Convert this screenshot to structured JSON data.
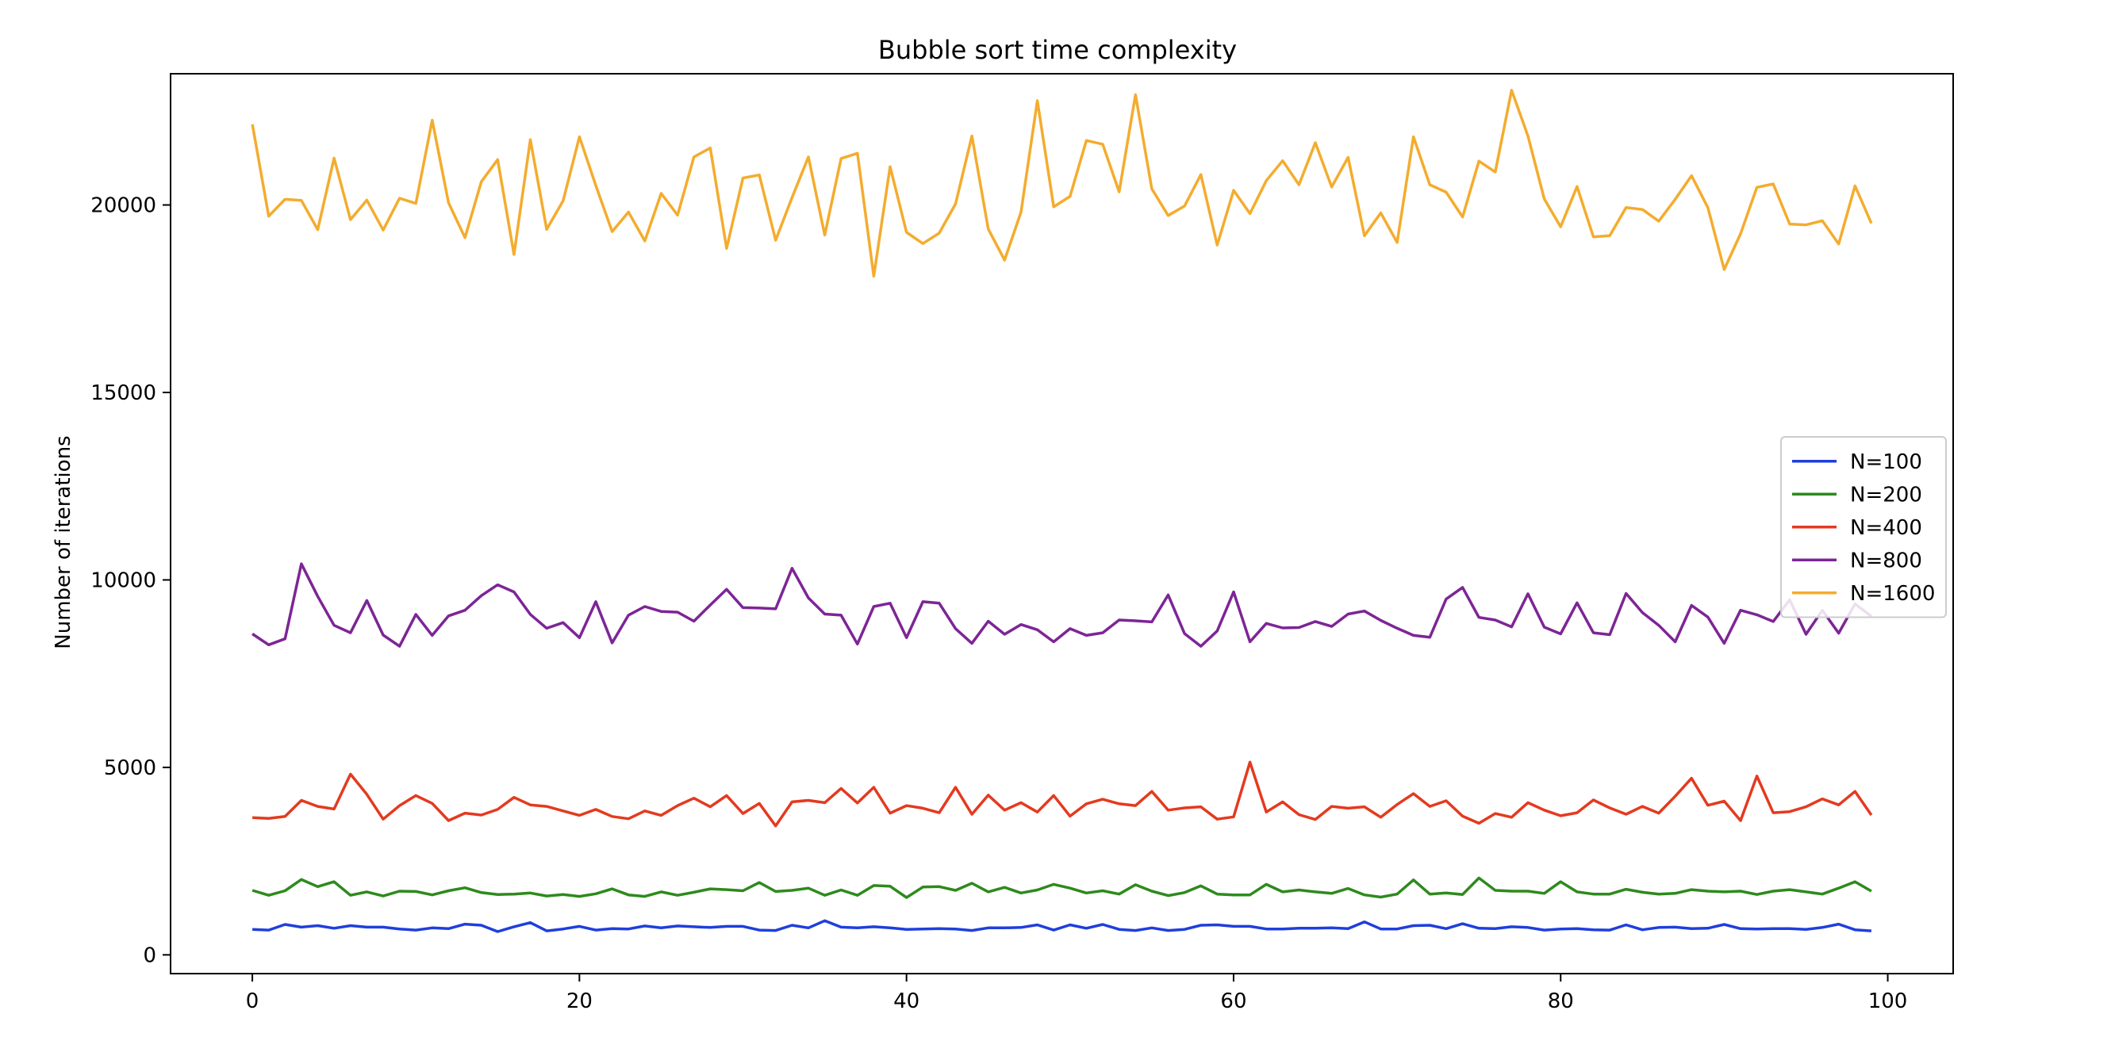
{
  "chart_data": {
    "type": "line",
    "title": "Bubble sort time complexity",
    "xlabel": "",
    "ylabel": "Number of iterations",
    "xlim": [
      -5,
      104
    ],
    "ylim": [
      -500,
      23500
    ],
    "xticks": [
      0,
      20,
      40,
      60,
      80,
      100
    ],
    "yticks": [
      0,
      5000,
      10000,
      15000,
      20000
    ],
    "grid": false,
    "legend_position": "center-right",
    "series": [
      {
        "name": "N=100",
        "color": "#1f3fdc",
        "values": [
          680,
          660,
          810,
          740,
          780,
          710,
          780,
          740,
          740,
          690,
          660,
          720,
          700,
          820,
          790,
          620,
          750,
          860,
          640,
          690,
          760,
          660,
          700,
          690,
          770,
          720,
          770,
          750,
          730,
          760,
          760,
          660,
          650,
          790,
          720,
          910,
          740,
          720,
          750,
          720,
          680,
          690,
          700,
          690,
          650,
          720,
          720,
          730,
          800,
          660,
          800,
          710,
          810,
          680,
          650,
          720,
          650,
          680,
          790,
          800,
          760,
          760,
          690,
          690,
          710,
          710,
          720,
          700,
          880,
          690,
          690,
          780,
          790,
          700,
          830,
          710,
          700,
          750,
          730,
          660,
          690,
          700,
          670,
          660,
          800,
          670,
          730,
          740,
          700,
          710,
          810,
          700,
          690,
          700,
          700,
          680,
          730,
          820,
          670,
          640
        ]
      },
      {
        "name": "N=200",
        "color": "#2e8a1d",
        "values": [
          1720,
          1590,
          1710,
          2010,
          1820,
          1950,
          1590,
          1680,
          1570,
          1700,
          1690,
          1600,
          1710,
          1790,
          1660,
          1610,
          1620,
          1650,
          1570,
          1610,
          1560,
          1630,
          1760,
          1600,
          1560,
          1680,
          1590,
          1670,
          1760,
          1740,
          1710,
          1930,
          1690,
          1720,
          1780,
          1590,
          1730,
          1590,
          1850,
          1830,
          1530,
          1810,
          1820,
          1720,
          1910,
          1680,
          1800,
          1650,
          1730,
          1880,
          1780,
          1650,
          1710,
          1620,
          1870,
          1700,
          1580,
          1660,
          1840,
          1620,
          1600,
          1600,
          1880,
          1680,
          1730,
          1680,
          1640,
          1770,
          1600,
          1540,
          1620,
          2000,
          1620,
          1650,
          1610,
          2050,
          1720,
          1700,
          1700,
          1640,
          1950,
          1680,
          1620,
          1620,
          1750,
          1670,
          1620,
          1640,
          1740,
          1700,
          1680,
          1700,
          1610,
          1700,
          1740,
          1680,
          1620,
          1780,
          1950,
          1700
        ]
      },
      {
        "name": "N=400",
        "color": "#e43a1f",
        "values": [
          3660,
          3640,
          3690,
          4120,
          3960,
          3890,
          4820,
          4280,
          3620,
          3980,
          4250,
          4040,
          3580,
          3780,
          3730,
          3880,
          4200,
          4000,
          3960,
          3840,
          3720,
          3880,
          3690,
          3630,
          3840,
          3720,
          3980,
          4180,
          3950,
          4250,
          3770,
          4040,
          3440,
          4080,
          4120,
          4060,
          4440,
          4050,
          4470,
          3780,
          3980,
          3910,
          3790,
          4470,
          3750,
          4260,
          3860,
          4060,
          3810,
          4250,
          3700,
          4030,
          4150,
          4030,
          3980,
          4360,
          3860,
          3920,
          3950,
          3620,
          3680,
          5140,
          3810,
          4080,
          3740,
          3610,
          3960,
          3910,
          3950,
          3670,
          4010,
          4300,
          3960,
          4110,
          3700,
          3510,
          3770,
          3670,
          4060,
          3860,
          3710,
          3790,
          4130,
          3920,
          3750,
          3960,
          3780,
          4230,
          4710,
          3990,
          4100,
          3580,
          4770,
          3790,
          3820,
          3950,
          4160,
          4000,
          4360,
          3730
        ]
      },
      {
        "name": "N=800",
        "color": "#7d2596",
        "values": [
          8560,
          8270,
          8430,
          10430,
          9560,
          8790,
          8590,
          9450,
          8530,
          8230,
          9080,
          8520,
          9040,
          9190,
          9580,
          9870,
          9680,
          9080,
          8710,
          8860,
          8460,
          9420,
          8320,
          9060,
          9290,
          9160,
          9140,
          8900,
          9330,
          9750,
          9260,
          9250,
          9230,
          10310,
          9520,
          9090,
          9060,
          8290,
          9290,
          9380,
          8460,
          9420,
          9380,
          8700,
          8310,
          8900,
          8550,
          8810,
          8670,
          8350,
          8700,
          8520,
          8590,
          8930,
          8910,
          8880,
          9600,
          8570,
          8230,
          8640,
          9680,
          8350,
          8840,
          8720,
          8730,
          8890,
          8760,
          9090,
          9170,
          8920,
          8710,
          8520,
          8470,
          9490,
          9800,
          9000,
          8930,
          8750,
          9630,
          8740,
          8560,
          9390,
          8590,
          8540,
          9640,
          9130,
          8790,
          8350,
          9320,
          9010,
          8310,
          9190,
          9070,
          8890,
          9470,
          8550,
          9190,
          8580,
          9360,
          9030
        ]
      },
      {
        "name": "N=1600",
        "color": "#f4ac2e",
        "values": [
          22150,
          19700,
          20150,
          20120,
          19340,
          21250,
          19610,
          20130,
          19330,
          20180,
          20040,
          22260,
          20060,
          19130,
          20620,
          21210,
          18680,
          21740,
          19350,
          20110,
          21820,
          20520,
          19290,
          19810,
          19040,
          20310,
          19730,
          21280,
          21520,
          18840,
          20720,
          20800,
          19060,
          20200,
          21280,
          19200,
          21240,
          21380,
          18100,
          21020,
          19270,
          18970,
          19250,
          20030,
          21840,
          19360,
          18530,
          19810,
          22780,
          19950,
          20230,
          21720,
          21620,
          20350,
          22940,
          20430,
          19720,
          19970,
          20810,
          18930,
          20390,
          19770,
          20650,
          21180,
          20540,
          21660,
          20480,
          21270,
          19180,
          19790,
          19000,
          21820,
          20540,
          20340,
          19680,
          21170,
          20880,
          23060,
          21840,
          20160,
          19420,
          20490,
          19150,
          19180,
          19930,
          19880,
          19570,
          20150,
          20780,
          19930,
          18280,
          19230,
          20470,
          20560,
          19490,
          19470,
          19580,
          18960,
          20510,
          19510
        ]
      }
    ]
  }
}
